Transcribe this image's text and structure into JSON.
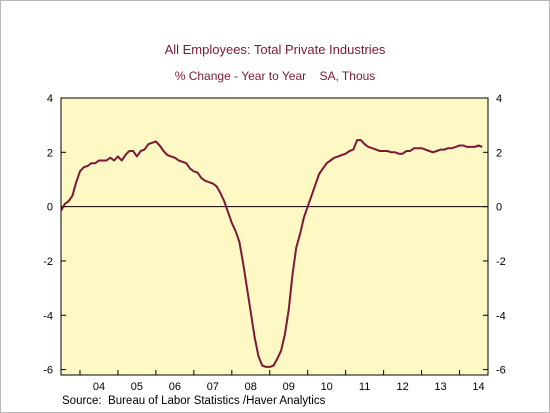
{
  "chart_data": {
    "type": "line",
    "title": "All Employees: Total Private Industries",
    "subtitle": "% Change - Year to Year    SA, Thous",
    "source": "Source:  Bureau of Labor Statistics /Haver Analytics",
    "xlabel": "",
    "ylabel": "",
    "x_range": [
      2003.5,
      2014.75
    ],
    "ylim": [
      -6.2,
      4.0
    ],
    "y_ticks": [
      -6,
      -4,
      -2,
      0,
      2,
      4
    ],
    "y_tick_labels": [
      "-6",
      "-4",
      "-2",
      "0",
      "2",
      "4"
    ],
    "x_ticks": [
      2004,
      2005,
      2006,
      2007,
      2008,
      2009,
      2010,
      2011,
      2012,
      2013,
      2014
    ],
    "x_tick_labels": [
      "04",
      "05",
      "06",
      "07",
      "08",
      "09",
      "10",
      "11",
      "12",
      "13",
      "14"
    ],
    "grid": false,
    "zero_line": true,
    "colors": {
      "plot_background": "#fdf8c4",
      "line": "#7d1838",
      "title": "#7a1a34"
    },
    "series": [
      {
        "x": [
          2003.5,
          2003.6,
          2003.7,
          2003.8,
          2003.9,
          2004.0,
          2004.1,
          2004.2,
          2004.3,
          2004.4,
          2004.5,
          2004.6,
          2004.7,
          2004.8,
          2004.9,
          2005.0,
          2005.1,
          2005.2,
          2005.3,
          2005.4,
          2005.5,
          2005.6,
          2005.7,
          2005.8,
          2005.9,
          2006.0,
          2006.1,
          2006.2,
          2006.3,
          2006.4,
          2006.5,
          2006.6,
          2006.7,
          2006.8,
          2006.9,
          2007.0,
          2007.1,
          2007.2,
          2007.3,
          2007.4,
          2007.5,
          2007.6,
          2007.7,
          2007.8,
          2007.9,
          2008.0,
          2008.1,
          2008.2,
          2008.3,
          2008.4,
          2008.5,
          2008.6,
          2008.7,
          2008.8,
          2008.9,
          2009.0,
          2009.1,
          2009.2,
          2009.3,
          2009.4,
          2009.5,
          2009.6,
          2009.7,
          2009.8,
          2009.9,
          2010.0,
          2010.1,
          2010.2,
          2010.3,
          2010.4,
          2010.5,
          2010.6,
          2010.7,
          2010.8,
          2010.9,
          2011.0,
          2011.1,
          2011.2,
          2011.3,
          2011.4,
          2011.5,
          2011.6,
          2011.7,
          2011.8,
          2011.9,
          2012.0,
          2012.1,
          2012.2,
          2012.3,
          2012.4,
          2012.5,
          2012.6,
          2012.7,
          2012.8,
          2012.9,
          2013.0,
          2013.1,
          2013.2,
          2013.3,
          2013.4,
          2013.5,
          2013.6,
          2013.7,
          2013.8,
          2013.9,
          2014.0,
          2014.1,
          2014.2,
          2014.3,
          2014.4,
          2014.5,
          2014.6
        ],
        "values": [
          -0.15,
          0.1,
          0.2,
          0.4,
          0.9,
          1.3,
          1.45,
          1.5,
          1.6,
          1.6,
          1.7,
          1.7,
          1.7,
          1.8,
          1.7,
          1.85,
          1.7,
          1.9,
          2.05,
          2.05,
          1.85,
          2.05,
          2.1,
          2.3,
          2.35,
          2.4,
          2.25,
          2.05,
          1.9,
          1.85,
          1.8,
          1.7,
          1.65,
          1.6,
          1.4,
          1.3,
          1.25,
          1.05,
          0.95,
          0.9,
          0.85,
          0.75,
          0.5,
          0.2,
          -0.2,
          -0.6,
          -0.9,
          -1.3,
          -2.1,
          -3.0,
          -3.9,
          -4.8,
          -5.5,
          -5.85,
          -5.9,
          -5.9,
          -5.85,
          -5.6,
          -5.3,
          -4.7,
          -3.8,
          -2.5,
          -1.5,
          -1.0,
          -0.4,
          0.0,
          0.4,
          0.8,
          1.2,
          1.4,
          1.6,
          1.7,
          1.8,
          1.85,
          1.9,
          1.95,
          2.05,
          2.1,
          2.45,
          2.45,
          2.3,
          2.2,
          2.15,
          2.1,
          2.05,
          2.05,
          2.05,
          2.0,
          2.0,
          1.95,
          1.95,
          2.05,
          2.05,
          2.15,
          2.15,
          2.15,
          2.1,
          2.05,
          2.0,
          2.05,
          2.1,
          2.1,
          2.15,
          2.15,
          2.2,
          2.25,
          2.25,
          2.2,
          2.2,
          2.2,
          2.25,
          2.2
        ]
      }
    ]
  }
}
